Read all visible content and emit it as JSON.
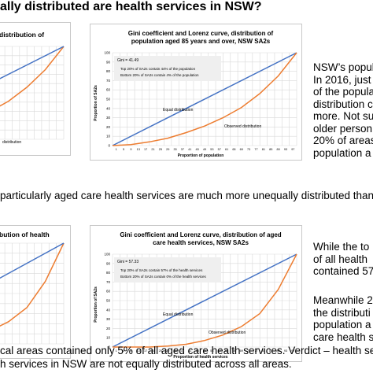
{
  "page_title": "ally distributed are health services in NSW?",
  "colors": {
    "equal_line": "#4472c4",
    "observed_line": "#ed7d31",
    "grid": "#d9d9d9",
    "annotation_bg": "#efefef"
  },
  "charts": {
    "top_left": {
      "title": [
        "distribution of"
      ],
      "legend_label": "distribution"
    },
    "top_right": {
      "title": [
        "Gini coefficient and Lorenz curve, distribution of",
        "population aged 85 years and over, NSW SA2s"
      ],
      "ylabel": "Proportion of SA2s",
      "xlabel": "Proportion of population",
      "gini": "Gini = 41.49",
      "note": [
        "Top 20% of SA2s contain 44% of the population",
        "Bottom 20% of SA2s contain 4% of the population"
      ],
      "equal_label": "Equal distribution",
      "observed_label": "Observed distribution",
      "y_ticks": [
        "0",
        "10",
        "20",
        "30",
        "40",
        "50",
        "60",
        "70",
        "80",
        "90",
        "100"
      ],
      "x_ticks": [
        "1",
        "5",
        "9",
        "13",
        "17",
        "21",
        "25",
        "29",
        "33",
        "37",
        "41",
        "45",
        "49",
        "53",
        "57",
        "61",
        "65",
        "69",
        "73",
        "77",
        "81",
        "85",
        "89",
        "93",
        "97"
      ]
    },
    "bottom_left": {
      "title": [
        "bution of health"
      ]
    },
    "bottom_right": {
      "title": [
        "Gini coefficient and Lorenz curve, distribution of aged",
        "care health services, NSW SA2s"
      ],
      "ylabel": "Proportion of SA2s",
      "xlabel": "Proportion of health services",
      "gini": "Gini = 57.33",
      "note": [
        "Top 20% of SA2s contain 57% of the health services",
        "Bottom 20% of SA2s contain 0% of the health services"
      ],
      "equal_label": "Equal distribution",
      "observed_label": "Observed distribution",
      "y_ticks": [
        "0",
        "10",
        "20",
        "30",
        "40",
        "50",
        "60",
        "70",
        "80",
        "90",
        "100"
      ],
      "x_ticks": [
        "1",
        "5",
        "9",
        "13",
        "17",
        "21",
        "25",
        "29",
        "33",
        "37",
        "41",
        "45",
        "49",
        "53",
        "57",
        "61",
        "65",
        "69",
        "73",
        "77",
        "81",
        "85",
        "89",
        "93",
        "97"
      ]
    }
  },
  "side_text_top": [
    "NSW’s popul",
    "In 2016, just",
    "of the popula",
    "distribution c",
    "more. Not su",
    "older person",
    "20% of areas",
    "population a"
  ],
  "middle_text": "particularly aged care health services are much more unequally distributed than",
  "side_text_bottom_1": [
    "While the to",
    "of all health",
    "contained 57"
  ],
  "side_text_bottom_2": [
    "Meanwhile 2",
    "the distributi",
    "population a",
    "care health s"
  ],
  "bottom_text": [
    "cal areas contained only 5% of all aged care health services. Verdict – health serv",
    "h services in NSW are not equally distributed across all areas."
  ],
  "chart_data": [
    {
      "type": "line",
      "title": "Gini coefficient and Lorenz curve, distribution of population aged 85 years and over, NSW SA2s",
      "xlabel": "Proportion of population",
      "ylabel": "Proportion of SA2s",
      "ylim": [
        0,
        100
      ],
      "x": [
        0,
        10,
        20,
        30,
        40,
        50,
        60,
        70,
        80,
        90,
        100
      ],
      "series": [
        {
          "name": "Equal distribution",
          "values": [
            0,
            10,
            20,
            30,
            40,
            50,
            60,
            70,
            80,
            90,
            100
          ]
        },
        {
          "name": "Observed distribution",
          "values": [
            0,
            1,
            4,
            8,
            14,
            21,
            30,
            41,
            56,
            75,
            100
          ]
        }
      ]
    },
    {
      "type": "line",
      "title": "Gini coefficient and Lorenz curve, distribution of aged care health services, NSW SA2s",
      "xlabel": "Proportion of health services",
      "ylabel": "Proportion of SA2s",
      "ylim": [
        0,
        100
      ],
      "x": [
        0,
        10,
        20,
        30,
        40,
        50,
        60,
        70,
        80,
        90,
        100
      ],
      "series": [
        {
          "name": "Equal distribution",
          "values": [
            0,
            10,
            20,
            30,
            40,
            50,
            60,
            70,
            80,
            90,
            100
          ]
        },
        {
          "name": "Observed distribution",
          "values": [
            0,
            0,
            0,
            1,
            3,
            7,
            13,
            22,
            36,
            62,
            100
          ]
        }
      ]
    }
  ]
}
